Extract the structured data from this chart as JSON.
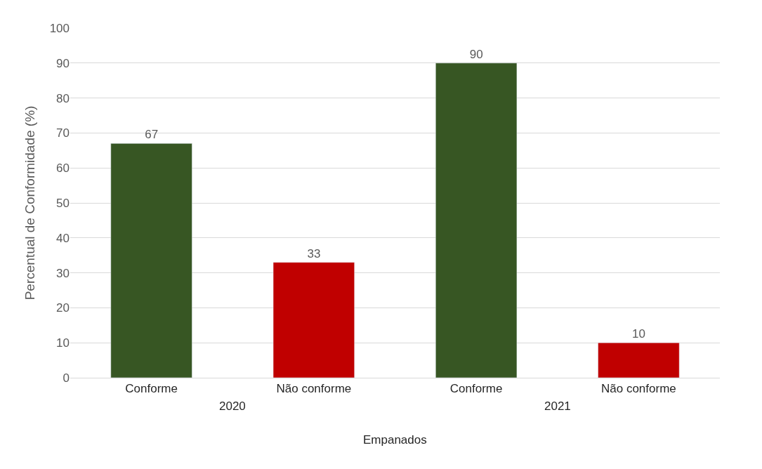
{
  "chart_data": {
    "type": "bar",
    "categories": [
      "Conforme",
      "Não conforme",
      "Conforme",
      "Não conforme"
    ],
    "values": [
      67,
      33,
      90,
      10
    ],
    "colors": [
      "#375623",
      "#c00000",
      "#375623",
      "#c00000"
    ],
    "ylabel": "Percentual de Conformidade (%)",
    "xlabel": "Empanados",
    "annotations": [
      "2020",
      "2021"
    ],
    "ylim": [
      0,
      100
    ],
    "yticks": [
      0,
      10,
      20,
      30,
      40,
      50,
      60,
      70,
      80,
      90,
      100
    ],
    "grid": "y",
    "data_labels": true
  }
}
